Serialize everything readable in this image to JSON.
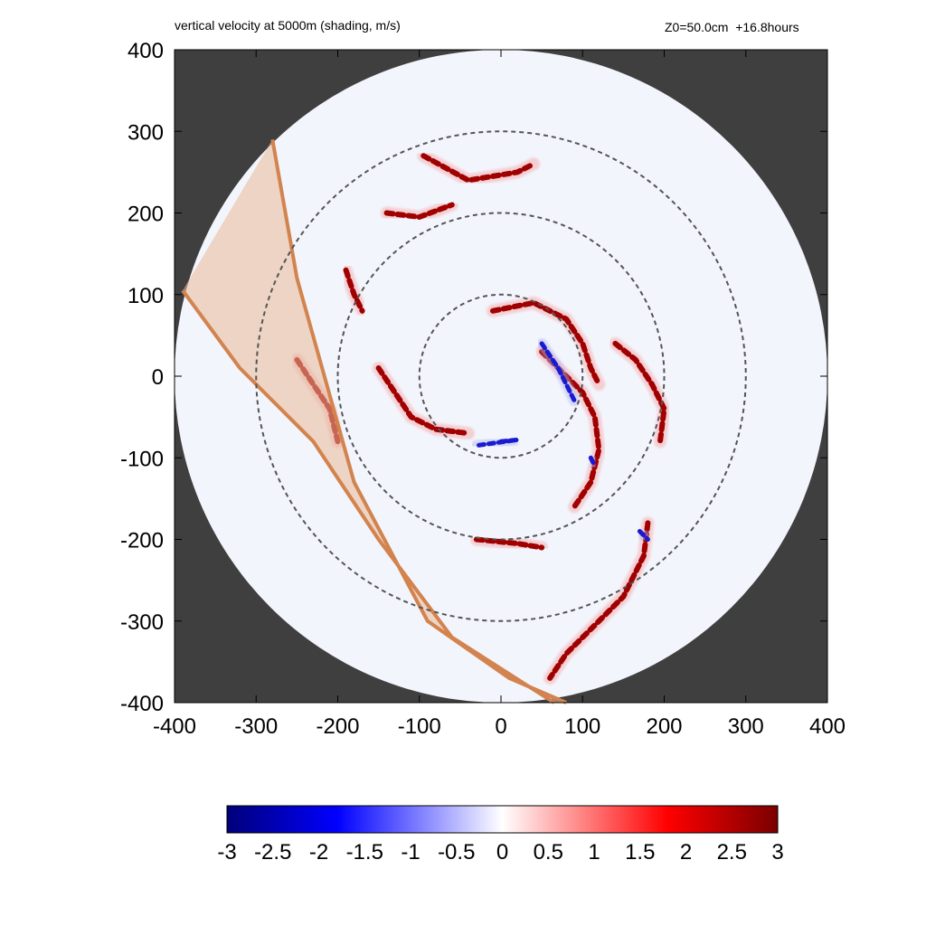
{
  "header": {
    "left_title": "vertical velocity at 5000m (shading, m/s)",
    "right_title": "Z0=50.0cm  +16.8hours"
  },
  "colors": {
    "background_outside_domain": "#3f3f3f",
    "domain_fill": "#f3f5fc",
    "ring_stroke": "#555555",
    "sector_fill": "#e8b898",
    "sector_stroke": "#d2834e",
    "updraft": "#a00000",
    "downdraft": "#1a1ad0"
  },
  "chart_data": {
    "type": "heatmap",
    "title": "vertical velocity at 5000m (shading, m/s)",
    "xlim": [
      -400,
      400
    ],
    "ylim": [
      -400,
      400
    ],
    "x_ticks": [
      "-400",
      "-300",
      "-200",
      "-100",
      "0",
      "100",
      "200",
      "300",
      "400"
    ],
    "y_ticks": [
      "400",
      "300",
      "200",
      "100",
      "0",
      "-100",
      "-200",
      "-300",
      "-400"
    ],
    "domain_radius": 400,
    "range_rings": [
      100,
      200,
      300
    ],
    "sector": {
      "outer_edge": [
        [
          -280,
          290
        ],
        [
          -250,
          120
        ],
        [
          -180,
          -130
        ],
        [
          -90,
          -300
        ],
        [
          10,
          -370
        ],
        [
          80,
          -400
        ]
      ],
      "inner_edge": [
        [
          -390,
          105
        ],
        [
          -320,
          10
        ],
        [
          -230,
          -80
        ],
        [
          -150,
          -200
        ],
        [
          -60,
          -320
        ],
        [
          65,
          -400
        ]
      ]
    },
    "colorbar": {
      "min": -3,
      "max": 3,
      "labels": [
        "-3",
        "-2.5",
        "-2",
        "-1.5",
        "-1",
        "-0.5",
        "0",
        "0.5",
        "1",
        "1.5",
        "2",
        "2.5",
        "3"
      ]
    },
    "updraft_bands": [
      {
        "points": [
          [
            -95,
            270
          ],
          [
            -40,
            240
          ],
          [
            20,
            250
          ],
          [
            40,
            260
          ]
        ]
      },
      {
        "points": [
          [
            -140,
            200
          ],
          [
            -100,
            195
          ],
          [
            -60,
            210
          ]
        ]
      },
      {
        "points": [
          [
            -190,
            130
          ],
          [
            -180,
            100
          ],
          [
            -170,
            80
          ]
        ]
      },
      {
        "points": [
          [
            -150,
            10
          ],
          [
            -130,
            -20
          ],
          [
            -110,
            -50
          ],
          [
            -80,
            -65
          ],
          [
            -40,
            -70
          ]
        ]
      },
      {
        "points": [
          [
            -10,
            80
          ],
          [
            40,
            90
          ],
          [
            80,
            70
          ],
          [
            100,
            40
          ],
          [
            110,
            10
          ],
          [
            120,
            -10
          ]
        ]
      },
      {
        "points": [
          [
            50,
            30
          ],
          [
            80,
            0
          ],
          [
            100,
            -20
          ],
          [
            115,
            -50
          ],
          [
            120,
            -90
          ],
          [
            110,
            -130
          ],
          [
            90,
            -160
          ]
        ]
      },
      {
        "points": [
          [
            140,
            40
          ],
          [
            165,
            20
          ],
          [
            185,
            -10
          ],
          [
            200,
            -40
          ],
          [
            195,
            -80
          ]
        ]
      },
      {
        "points": [
          [
            180,
            -180
          ],
          [
            175,
            -220
          ],
          [
            150,
            -270
          ],
          [
            110,
            -310
          ],
          [
            80,
            -340
          ],
          [
            60,
            -370
          ]
        ]
      },
      {
        "points": [
          [
            -250,
            20
          ],
          [
            -230,
            -10
          ],
          [
            -210,
            -40
          ],
          [
            -200,
            -80
          ]
        ]
      },
      {
        "points": [
          [
            -30,
            -200
          ],
          [
            20,
            -205
          ],
          [
            50,
            -210
          ]
        ]
      }
    ],
    "downdraft_bands": [
      {
        "points": [
          [
            50,
            40
          ],
          [
            70,
            10
          ],
          [
            90,
            -30
          ]
        ]
      },
      {
        "points": [
          [
            0,
            -80
          ],
          [
            20,
            -78
          ],
          [
            -30,
            -85
          ]
        ]
      },
      {
        "points": [
          [
            110,
            -100
          ],
          [
            115,
            -110
          ]
        ]
      },
      {
        "points": [
          [
            170,
            -190
          ],
          [
            180,
            -200
          ]
        ]
      }
    ]
  }
}
